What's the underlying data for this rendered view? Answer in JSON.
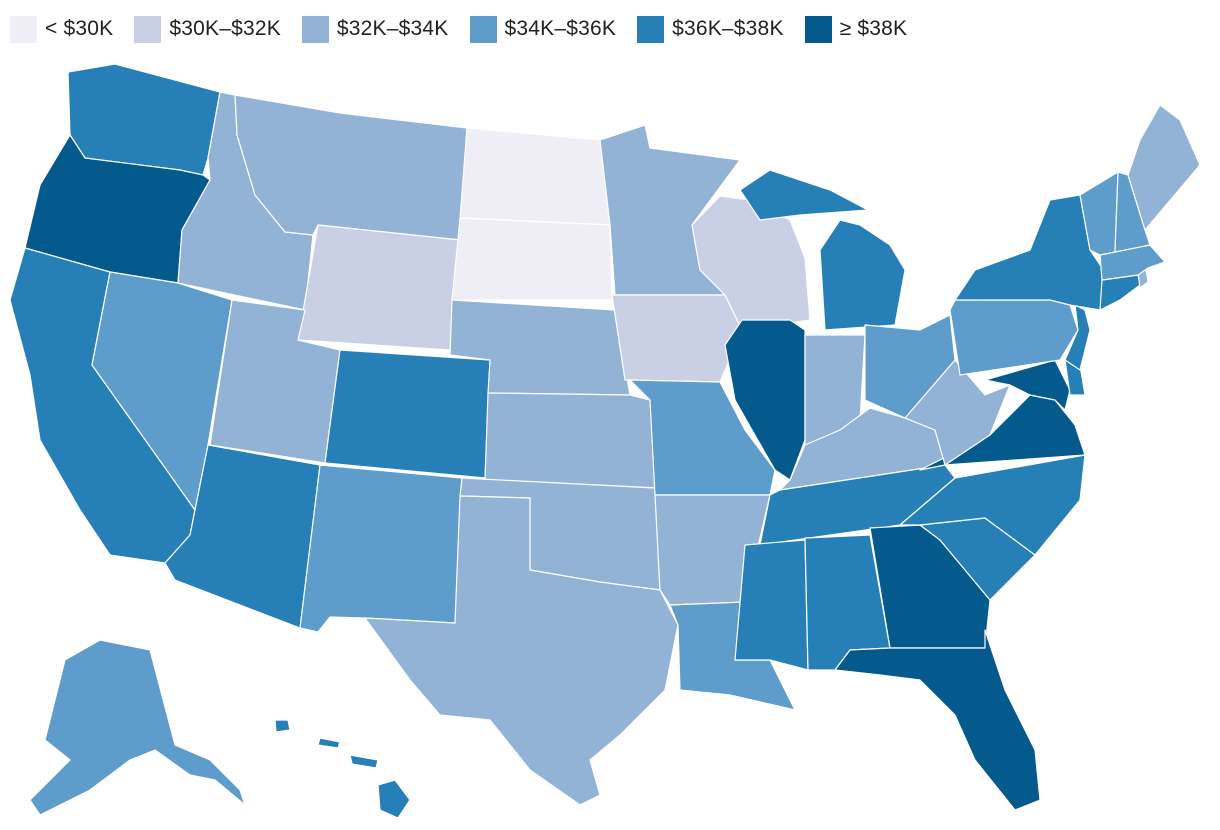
{
  "legend": {
    "items": [
      {
        "label": "< $30K",
        "color": "#efedf5"
      },
      {
        "label": "$30K–$32K",
        "color": "#c9d0e6"
      },
      {
        "label": "$32K–$34K",
        "color": "#93b3d6"
      },
      {
        "label": "$34K–$36K",
        "color": "#5e9ccb"
      },
      {
        "label": "$36K–$38K",
        "color": "#2680b7"
      },
      {
        "label": "≥ $38K",
        "color": "#045a8d"
      }
    ]
  },
  "states": [
    {
      "id": "WA",
      "bin": 4
    },
    {
      "id": "OR",
      "bin": 5
    },
    {
      "id": "CA",
      "bin": 4
    },
    {
      "id": "ID",
      "bin": 2
    },
    {
      "id": "NV",
      "bin": 3
    },
    {
      "id": "MT",
      "bin": 2
    },
    {
      "id": "WY",
      "bin": 1
    },
    {
      "id": "UT",
      "bin": 2
    },
    {
      "id": "AZ",
      "bin": 4
    },
    {
      "id": "CO",
      "bin": 4
    },
    {
      "id": "NM",
      "bin": 3
    },
    {
      "id": "ND",
      "bin": 0
    },
    {
      "id": "SD",
      "bin": 0
    },
    {
      "id": "NE",
      "bin": 2
    },
    {
      "id": "KS",
      "bin": 2
    },
    {
      "id": "OK",
      "bin": 2
    },
    {
      "id": "TX",
      "bin": 2
    },
    {
      "id": "MN",
      "bin": 2
    },
    {
      "id": "IA",
      "bin": 1
    },
    {
      "id": "MO",
      "bin": 3
    },
    {
      "id": "AR",
      "bin": 2
    },
    {
      "id": "LA",
      "bin": 3
    },
    {
      "id": "WI",
      "bin": 1
    },
    {
      "id": "IL",
      "bin": 5
    },
    {
      "id": "MI",
      "bin": 4
    },
    {
      "id": "IN",
      "bin": 2
    },
    {
      "id": "OH",
      "bin": 3
    },
    {
      "id": "KY",
      "bin": 2
    },
    {
      "id": "TN",
      "bin": 4
    },
    {
      "id": "MS",
      "bin": 4
    },
    {
      "id": "AL",
      "bin": 4
    },
    {
      "id": "GA",
      "bin": 5
    },
    {
      "id": "FL",
      "bin": 5
    },
    {
      "id": "SC",
      "bin": 4
    },
    {
      "id": "NC",
      "bin": 4
    },
    {
      "id": "VA",
      "bin": 5
    },
    {
      "id": "WV",
      "bin": 2
    },
    {
      "id": "MD",
      "bin": 5
    },
    {
      "id": "DE",
      "bin": 4
    },
    {
      "id": "PA",
      "bin": 3
    },
    {
      "id": "NJ",
      "bin": 4
    },
    {
      "id": "NY",
      "bin": 4
    },
    {
      "id": "CT",
      "bin": 4
    },
    {
      "id": "RI",
      "bin": 2
    },
    {
      "id": "MA",
      "bin": 3
    },
    {
      "id": "VT",
      "bin": 3
    },
    {
      "id": "NH",
      "bin": 3
    },
    {
      "id": "ME",
      "bin": 2
    },
    {
      "id": "AK",
      "bin": 3
    },
    {
      "id": "HI",
      "bin": 4
    }
  ]
}
